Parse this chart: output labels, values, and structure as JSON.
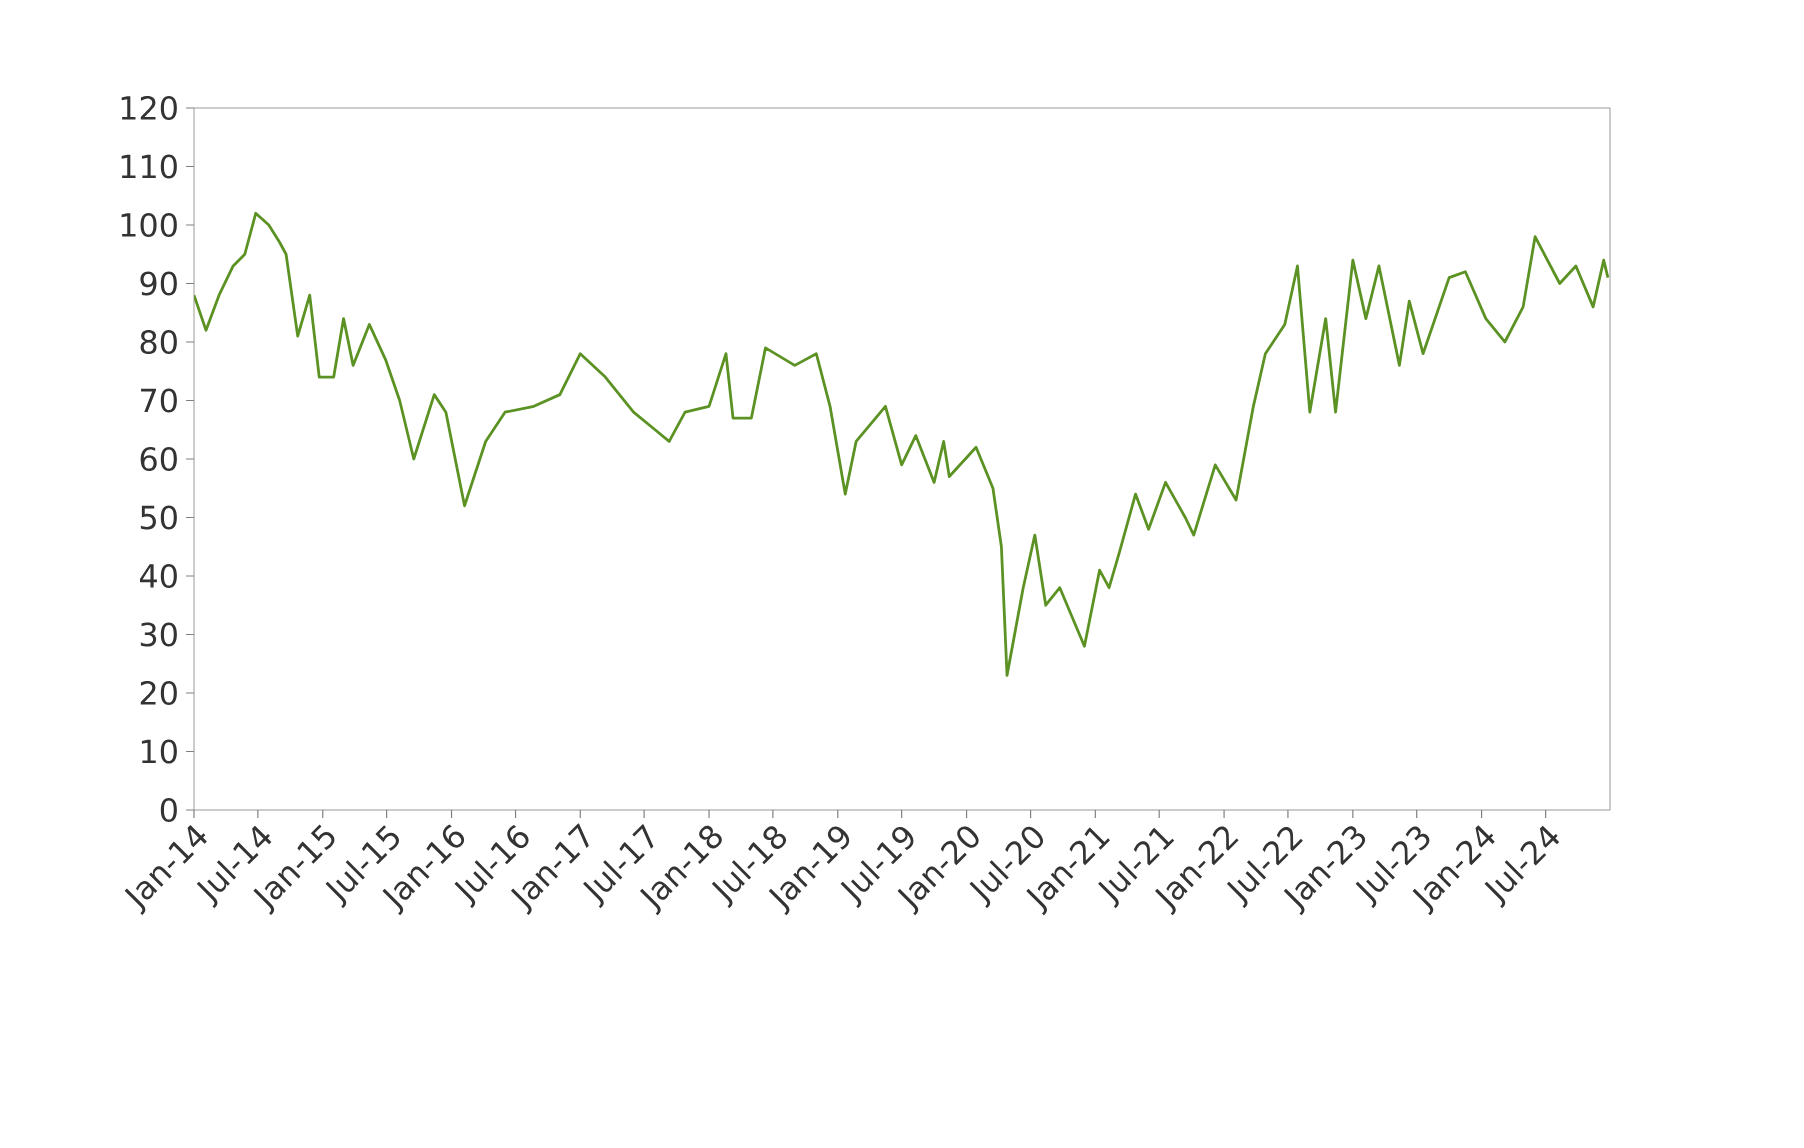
{
  "chart_data": {
    "type": "line",
    "x": [
      "2014-01-01",
      "2014-02-04",
      "2014-03-13",
      "2014-04-22",
      "2014-05-25",
      "2014-06-25",
      "2014-08-01",
      "2014-09-01",
      "2014-09-19",
      "2014-10-22",
      "2014-11-25",
      "2014-12-22",
      "2015-02-01",
      "2015-03-01",
      "2015-03-28",
      "2015-05-13",
      "2015-06-28",
      "2015-08-07",
      "2015-09-16",
      "2015-11-13",
      "2015-12-16",
      "2016-02-07",
      "2016-04-07",
      "2016-06-01",
      "2016-08-22",
      "2016-11-04",
      "2017-01-01",
      "2017-03-13",
      "2017-06-01",
      "2017-08-01",
      "2017-09-10",
      "2017-10-25",
      "2018-01-01",
      "2018-02-18",
      "2018-03-10",
      "2018-05-01",
      "2018-06-10",
      "2018-09-01",
      "2018-11-01",
      "2018-12-10",
      "2019-01-22",
      "2019-02-22",
      "2019-05-16",
      "2019-07-01",
      "2019-08-10",
      "2019-10-01",
      "2019-10-28",
      "2019-11-13",
      "2020-01-28",
      "2020-03-16",
      "2020-04-09",
      "2020-04-25",
      "2020-06-10",
      "2020-07-13",
      "2020-08-13",
      "2020-09-22",
      "2020-12-01",
      "2021-01-13",
      "2021-02-09",
      "2021-03-10",
      "2021-04-25",
      "2021-06-01",
      "2021-07-19",
      "2021-09-13",
      "2021-10-07",
      "2021-12-07",
      "2022-02-04",
      "2022-03-25",
      "2022-04-28",
      "2022-06-22",
      "2022-07-28",
      "2022-09-01",
      "2022-10-16",
      "2022-11-13",
      "2023-01-01",
      "2023-02-07",
      "2023-03-16",
      "2023-05-13",
      "2023-06-10",
      "2023-07-19",
      "2023-10-01",
      "2023-11-16",
      "2024-01-13",
      "2024-03-07",
      "2024-04-28",
      "2024-06-01",
      "2024-08-10",
      "2024-09-25",
      "2024-11-13",
      "2024-12-13",
      "2024-12-25"
    ],
    "series": [
      {
        "color": "#5b9223",
        "values": [
          88,
          82,
          88,
          93,
          95,
          102,
          100,
          97,
          95,
          81,
          88,
          74,
          74,
          84,
          76,
          83,
          77,
          70,
          60,
          71,
          68,
          52,
          63,
          68,
          69,
          71,
          78,
          74,
          68,
          65,
          63,
          68,
          69,
          78,
          67,
          67,
          79,
          76,
          78,
          69,
          54,
          63,
          69,
          59,
          64,
          56,
          63,
          57,
          62,
          55,
          45,
          23,
          38,
          47,
          35,
          38,
          28,
          41,
          38,
          44,
          54,
          48,
          56,
          50,
          47,
          59,
          53,
          69,
          78,
          83,
          93,
          68,
          84,
          68,
          94,
          84,
          93,
          76,
          87,
          78,
          91,
          92,
          84,
          80,
          86,
          98,
          90,
          93,
          86,
          94,
          91
        ]
      }
    ],
    "xlim": [
      "2014-01-01",
      "2024-12-31"
    ],
    "xticks": [
      {
        "value": "2014-01-01",
        "label": "Jan-14"
      },
      {
        "value": "2014-07-01",
        "label": "Jul-14"
      },
      {
        "value": "2015-01-01",
        "label": "Jan-15"
      },
      {
        "value": "2015-07-01",
        "label": "Jul-15"
      },
      {
        "value": "2016-01-01",
        "label": "Jan-16"
      },
      {
        "value": "2016-07-01",
        "label": "Jul-16"
      },
      {
        "value": "2017-01-01",
        "label": "Jan-17"
      },
      {
        "value": "2017-07-01",
        "label": "Jul-17"
      },
      {
        "value": "2018-01-01",
        "label": "Jan-18"
      },
      {
        "value": "2018-07-01",
        "label": "Jul-18"
      },
      {
        "value": "2019-01-01",
        "label": "Jan-19"
      },
      {
        "value": "2019-07-01",
        "label": "Jul-19"
      },
      {
        "value": "2020-01-01",
        "label": "Jan-20"
      },
      {
        "value": "2020-07-01",
        "label": "Jul-20"
      },
      {
        "value": "2021-01-01",
        "label": "Jan-21"
      },
      {
        "value": "2021-07-01",
        "label": "Jul-21"
      },
      {
        "value": "2022-01-01",
        "label": "Jan-22"
      },
      {
        "value": "2022-07-01",
        "label": "Jul-22"
      },
      {
        "value": "2023-01-01",
        "label": "Jan-23"
      },
      {
        "value": "2023-07-01",
        "label": "Jul-23"
      },
      {
        "value": "2024-01-01",
        "label": "Jan-24"
      },
      {
        "value": "2024-07-01",
        "label": "Jul-24"
      }
    ],
    "ylim": [
      0,
      120
    ],
    "yticks": [
      0,
      10,
      20,
      30,
      40,
      50,
      60,
      70,
      80,
      90,
      100,
      110,
      120
    ]
  }
}
